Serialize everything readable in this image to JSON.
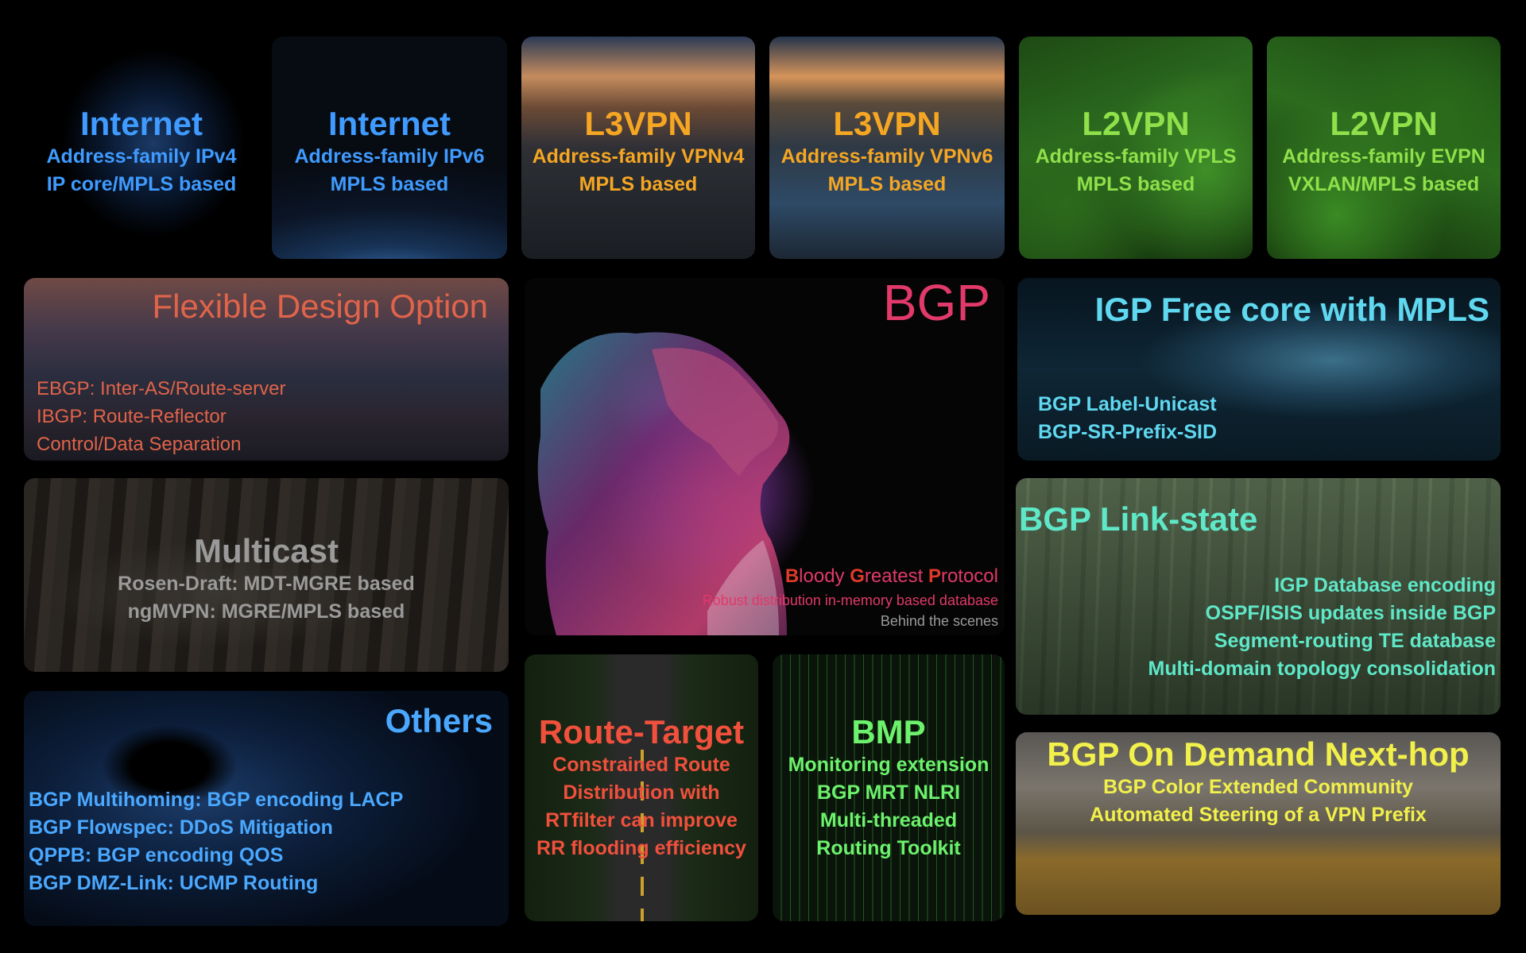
{
  "tiles": {
    "internet_v4": {
      "title": "Internet",
      "lines": [
        "Address-family IPv4",
        "IP core/MPLS based"
      ],
      "color": "#3f9bff"
    },
    "internet_v6": {
      "title": "Internet",
      "lines": [
        "Address-family IPv6",
        "MPLS based"
      ],
      "color": "#3f9bff"
    },
    "l3vpn_v4": {
      "title": "L3VPN",
      "lines": [
        "Address-family VPNv4",
        "MPLS based"
      ],
      "color": "#f5a623"
    },
    "l3vpn_v6": {
      "title": "L3VPN",
      "lines": [
        "Address-family VPNv6",
        "MPLS based"
      ],
      "color": "#f5a623"
    },
    "l2vpn_vpls": {
      "title": "L2VPN",
      "lines": [
        "Address-family VPLS",
        "MPLS based"
      ],
      "color": "#8fe04a"
    },
    "l2vpn_evpn": {
      "title": "L2VPN",
      "lines": [
        "Address-family EVPN",
        "VXLAN/MPLS based"
      ],
      "color": "#8fe04a"
    },
    "flexible": {
      "title": "Flexible Design Option",
      "lines": [
        "EBGP: Inter-AS/Route-server",
        "IBGP: Route-Reflector",
        "Control/Data Separation"
      ],
      "color": "#e0644a"
    },
    "multicast": {
      "title": "Multicast",
      "lines": [
        "Rosen-Draft: MDT-MGRE based",
        "ngMVPN: MGRE/MPLS based"
      ],
      "color": "#9a9a9a"
    },
    "others": {
      "title": "Others",
      "lines": [
        "BGP Multihoming: BGP encoding LACP",
        "BGP Flowspec: DDoS Mitigation",
        "QPPB: BGP encoding QOS",
        "BGP DMZ-Link: UCMP Routing"
      ],
      "color": "#4aa8ff"
    },
    "bgp": {
      "title": "BGP",
      "tagline_parts": [
        {
          "text": "B",
          "accent": true
        },
        {
          "text": "loody ",
          "accent": false
        },
        {
          "text": "G",
          "accent": true
        },
        {
          "text": "reatest ",
          "accent": false
        },
        {
          "text": "P",
          "accent": true
        },
        {
          "text": "rotocol",
          "accent": false
        }
      ],
      "sub1": "Robust distribution in-memory based database",
      "sub2": "Behind the scenes",
      "color": "#e0396a",
      "accent_color": "#e0392a",
      "sub2_color": "#9a9a9a"
    },
    "route_target": {
      "title": "Route-Target",
      "lines": [
        "Constrained Route",
        "Distribution with",
        "RTfilter can improve",
        "RR flooding efficiency"
      ],
      "color": "#f0503c"
    },
    "bmp": {
      "title": "BMP",
      "lines": [
        "Monitoring extension",
        "BGP MRT NLRI",
        "Multi-threaded",
        "Routing Toolkit"
      ],
      "color": "#6cf26c"
    },
    "igp_free": {
      "title": "IGP Free core with MPLS",
      "lines": [
        "BGP Label-Unicast",
        "BGP-SR-Prefix-SID"
      ],
      "color": "#5fd8f0"
    },
    "link_state": {
      "title": "BGP Link-state",
      "lines": [
        "IGP Database encoding",
        "OSPF/ISIS updates inside BGP",
        "Segment-routing TE database",
        "Multi-domain topology consolidation"
      ],
      "color": "#5fe8c8"
    },
    "odn": {
      "title": "BGP On Demand Next-hop",
      "lines": [
        "BGP Color Extended Community",
        "Automated Steering of a VPN Prefix"
      ],
      "color": "#f2f04a"
    }
  }
}
